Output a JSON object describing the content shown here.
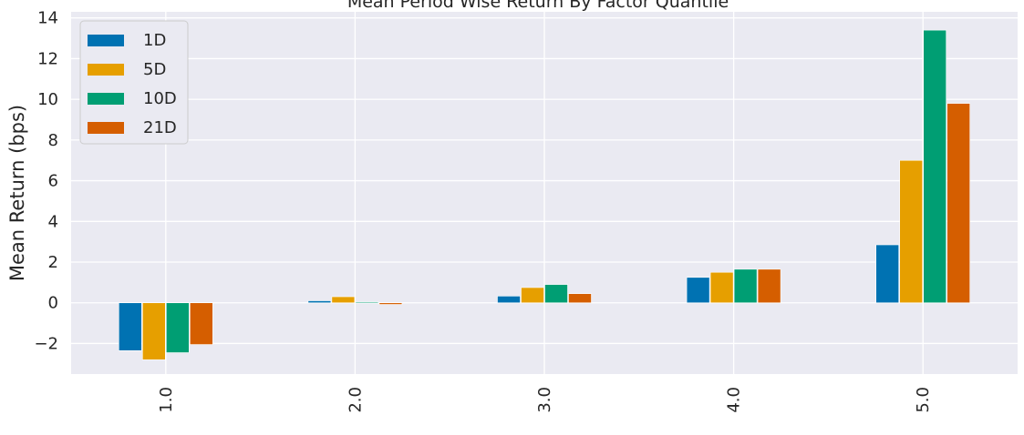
{
  "chart_data": {
    "type": "bar",
    "title": "Mean Period Wise Return By Factor Quantile",
    "xlabel": "",
    "ylabel": "Mean Return (bps)",
    "categories": [
      "1.0",
      "2.0",
      "3.0",
      "4.0",
      "5.0"
    ],
    "series": [
      {
        "name": "1D",
        "color": "#0072b2",
        "values": [
          -2.35,
          0.1,
          0.33,
          1.25,
          2.85
        ]
      },
      {
        "name": "5D",
        "color": "#e69f00",
        "values": [
          -2.8,
          0.3,
          0.75,
          1.5,
          7.0
        ]
      },
      {
        "name": "10D",
        "color": "#009e73",
        "values": [
          -2.45,
          0.05,
          0.9,
          1.65,
          13.4
        ]
      },
      {
        "name": "21D",
        "color": "#d55e00",
        "values": [
          -2.05,
          -0.08,
          0.45,
          1.65,
          9.8
        ]
      }
    ],
    "ylim": [
      -3.5,
      14.3
    ],
    "yticks": [
      -2,
      0,
      2,
      4,
      6,
      8,
      10,
      12,
      14
    ],
    "ytick_labels": [
      "−2",
      "0",
      "2",
      "4",
      "6",
      "8",
      "10",
      "12",
      "14"
    ],
    "grid": true,
    "legend_position": "top-left",
    "background": "#eaeaf2"
  }
}
